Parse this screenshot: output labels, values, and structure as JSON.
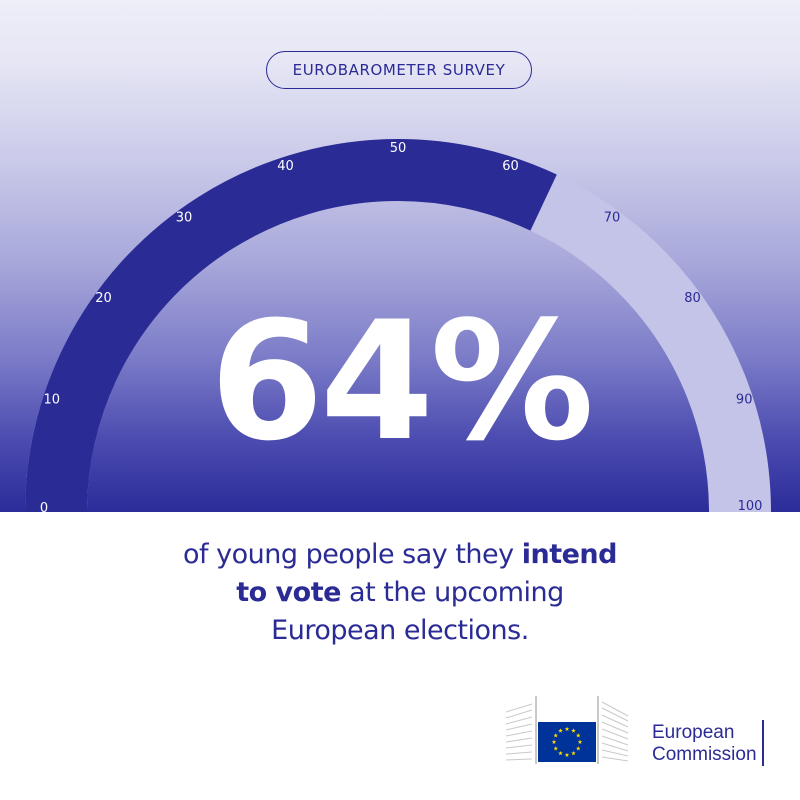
{
  "badge": "EUROBAROMETER SURVEY",
  "gauge": {
    "value": 64,
    "min": 0,
    "max": 100,
    "ticks": [
      "0",
      "10",
      "20",
      "30",
      "40",
      "50",
      "60",
      "70",
      "80",
      "90",
      "100"
    ],
    "filled_color": "#2b2b95",
    "track_color": "#c4c4e8"
  },
  "headline": "64%",
  "statement": {
    "part1": "of young people say they ",
    "bold1": "intend",
    "bold2": "to vote",
    "part2": " at the upcoming",
    "part3": "European elections."
  },
  "logo": {
    "line1": "European",
    "line2": "Commission",
    "flag_color": "#003399",
    "star_color": "#ffdd00"
  }
}
